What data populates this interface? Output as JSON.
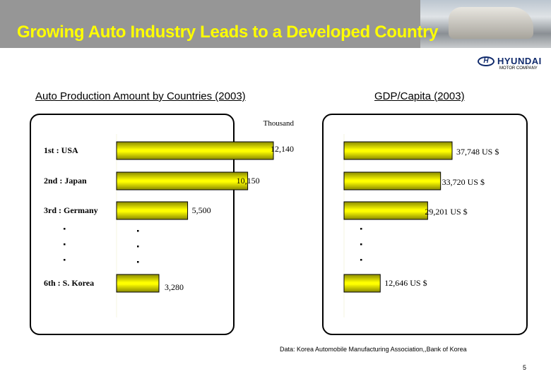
{
  "header": {
    "title": "Growing Auto Industry Leads to a Developed Country",
    "logo_text": "HYUNDAI",
    "logo_subtext": "MOTOR COMPANY"
  },
  "chart_data": [
    {
      "type": "bar",
      "orientation": "horizontal",
      "title": "Auto Production Amount by Countries (2003)",
      "unit_label": "Thousand",
      "categories": [
        "1st : USA",
        "2nd : Japan",
        "3rd : Germany",
        "6th : S. Korea"
      ],
      "values": [
        12140,
        10150,
        5500,
        3280
      ],
      "data_labels": [
        "12,140",
        "10,150",
        "5,500",
        "3,280"
      ],
      "bar_color": "#ffff00",
      "grid": false
    },
    {
      "type": "bar",
      "orientation": "horizontal",
      "title": "GDP/Capita (2003)",
      "categories": [
        "1st : USA",
        "2nd : Japan",
        "3rd : Germany",
        "6th : S. Korea"
      ],
      "values": [
        37748,
        33720,
        29201,
        12646
      ],
      "data_labels": [
        "37,748 US $",
        "33,720 US $",
        "29,201 US $",
        "12,646 US $"
      ],
      "bar_color": "#ffff00",
      "grid": false
    }
  ],
  "footer": {
    "source": "Data: Korea Automobile Manufacturing Association,,Bank of Korea",
    "page_number": "5"
  }
}
